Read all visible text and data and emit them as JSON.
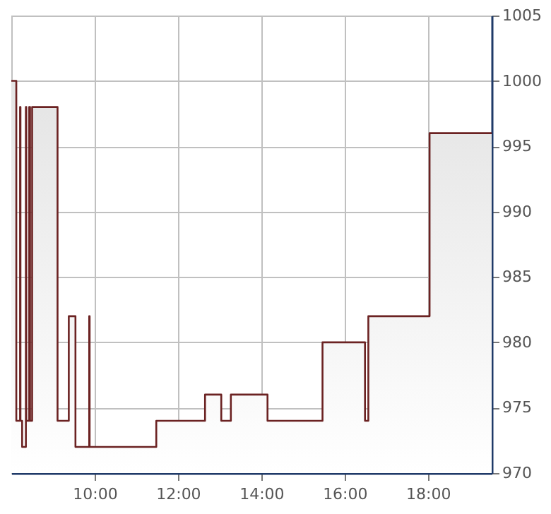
{
  "chart_data": {
    "type": "area",
    "x": [
      8.0,
      8.12,
      8.12,
      8.21,
      8.21,
      8.22,
      8.22,
      8.26,
      8.26,
      8.35,
      8.35,
      8.36,
      8.36,
      8.43,
      8.43,
      8.45,
      8.45,
      8.5,
      8.5,
      9.11,
      9.11,
      9.38,
      9.38,
      9.54,
      9.54,
      9.87,
      9.87,
      9.88,
      9.88,
      11.48,
      11.48,
      12.65,
      12.65,
      13.04,
      13.04,
      13.27,
      13.27,
      14.15,
      14.15,
      15.47,
      15.47,
      16.49,
      16.49,
      16.57,
      16.57,
      18.04,
      18.04,
      19.53
    ],
    "series": [
      {
        "color": "#6b2222",
        "values": [
          1000,
          1000,
          974,
          974,
          998,
          998,
          974,
          974,
          972,
          972,
          998,
          998,
          974,
          974,
          998,
          998,
          974,
          974,
          998,
          998,
          974,
          974,
          982,
          982,
          972,
          972,
          982,
          982,
          972,
          972,
          974,
          974,
          976,
          976,
          974,
          974,
          976,
          976,
          974,
          974,
          980,
          980,
          974,
          974,
          982,
          982,
          996,
          996
        ]
      }
    ],
    "xlim": [
      8.0,
      19.53
    ],
    "ylim": [
      970,
      1005
    ],
    "xticks": [
      {
        "value": 10,
        "label": "10:00"
      },
      {
        "value": 12,
        "label": "12:00"
      },
      {
        "value": 14,
        "label": "14:00"
      },
      {
        "value": 16,
        "label": "16:00"
      },
      {
        "value": 18,
        "label": "18:00"
      }
    ],
    "yticks": [
      970,
      975,
      980,
      985,
      990,
      995,
      1000,
      1005
    ],
    "grid": true
  }
}
